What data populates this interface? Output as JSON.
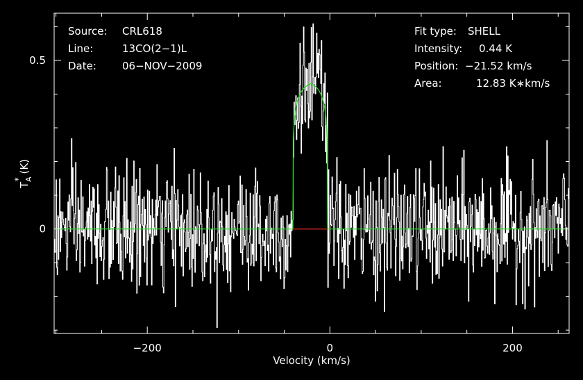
{
  "chart_data": {
    "type": "line",
    "title": "",
    "xlabel": "Velocity (km/s)",
    "ylabel_main": "T",
    "ylabel_sup": "*",
    "ylabel_sub": "A",
    "ylabel_unit": " (K)",
    "xlim": [
      -302,
      262
    ],
    "ylim": [
      -0.31,
      0.64
    ],
    "x_ticks": [
      {
        "value": -200,
        "label": "−200"
      },
      {
        "value": 0,
        "label": "0"
      },
      {
        "value": 200,
        "label": "200"
      }
    ],
    "y_ticks": [
      {
        "value": 0,
        "label": "0"
      },
      {
        "value": 0.5,
        "label": "0.5"
      }
    ],
    "info_left": [
      {
        "key": "Source:",
        "value": "CRL618"
      },
      {
        "key": "Line:",
        "value": "13CO(2−1)L"
      },
      {
        "key": "Date:",
        "value": "06−NOV−2009"
      }
    ],
    "info_right": [
      {
        "key": "Fit type:",
        "value": "SHELL"
      },
      {
        "key": "Intensity:",
        "value": "0.44 K"
      },
      {
        "key": "Position:",
        "value": "−21.52 km/s"
      },
      {
        "key": "Area:",
        "value": "12.83 K∗km/s"
      }
    ],
    "fit": {
      "position": -21.52,
      "intensity": 0.44,
      "area": 12.83,
      "velocity_range": [
        -40.5,
        -2.5
      ]
    },
    "series": [
      {
        "role": "spectrum",
        "x_range": [
          -302,
          262
        ],
        "noise_rms": 0.09
      },
      {
        "role": "fit"
      },
      {
        "role": "residual-window",
        "x_range": [
          -40.5,
          -2.5
        ]
      }
    ],
    "colors": {
      "background": "#000000",
      "spectrum": "#ffffff",
      "fit": "#22dd22",
      "baseline_window": "#cc2222"
    }
  }
}
